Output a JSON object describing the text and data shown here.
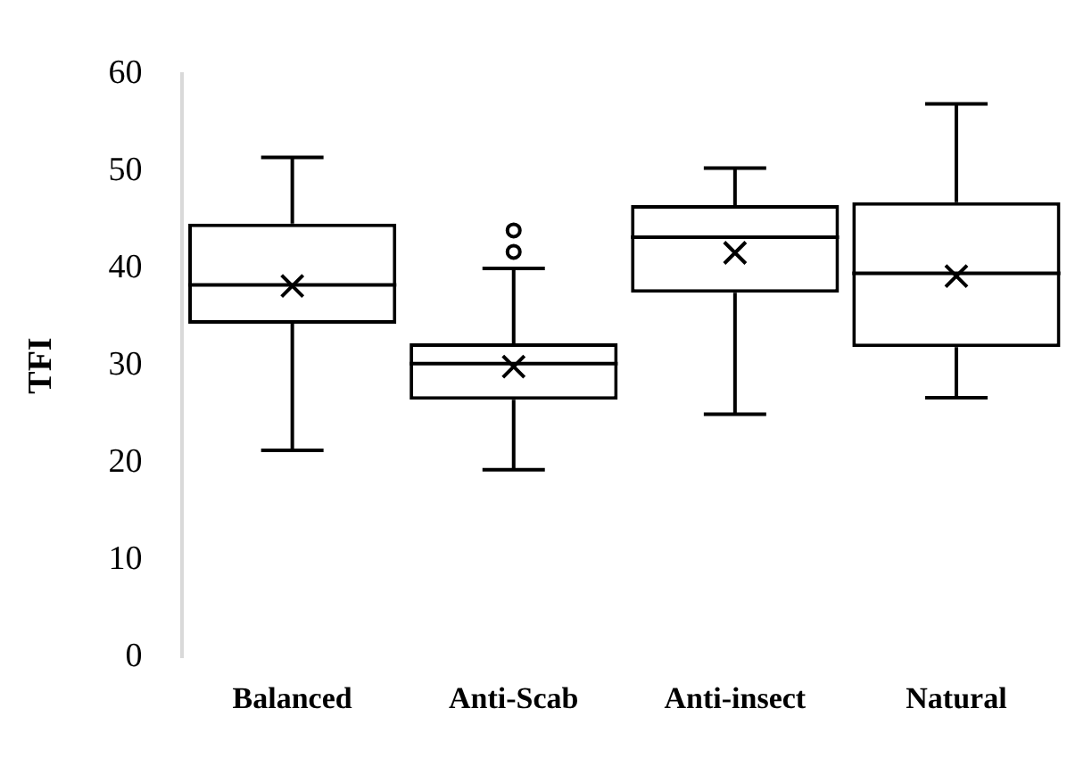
{
  "chart_data": {
    "type": "box",
    "ylabel": "TFI",
    "categories": [
      "Balanced",
      "Anti-Scab",
      "Anti-insect",
      "Natural"
    ],
    "ylim": [
      0,
      60
    ],
    "yticks": [
      0,
      10,
      20,
      30,
      40,
      50,
      60
    ],
    "grid": false,
    "legend": false,
    "color": "#000000",
    "boxes": [
      {
        "low": 21.3,
        "q1": 34.3,
        "median": 38.3,
        "q3": 44.6,
        "high": 51.4,
        "mean": 38.2
      },
      {
        "low": 19.3,
        "q1": 26.5,
        "median": 30.2,
        "q3": 32.3,
        "high": 40.0,
        "mean": 29.9,
        "outliers": [
          41.7,
          43.9
        ]
      },
      {
        "low": 25.0,
        "q1": 37.5,
        "median": 43.2,
        "q3": 46.5,
        "high": 50.3,
        "mean": 41.6
      },
      {
        "low": 26.7,
        "q1": 31.9,
        "median": 39.5,
        "q3": 46.8,
        "high": 56.9,
        "mean": 39.2
      }
    ]
  }
}
